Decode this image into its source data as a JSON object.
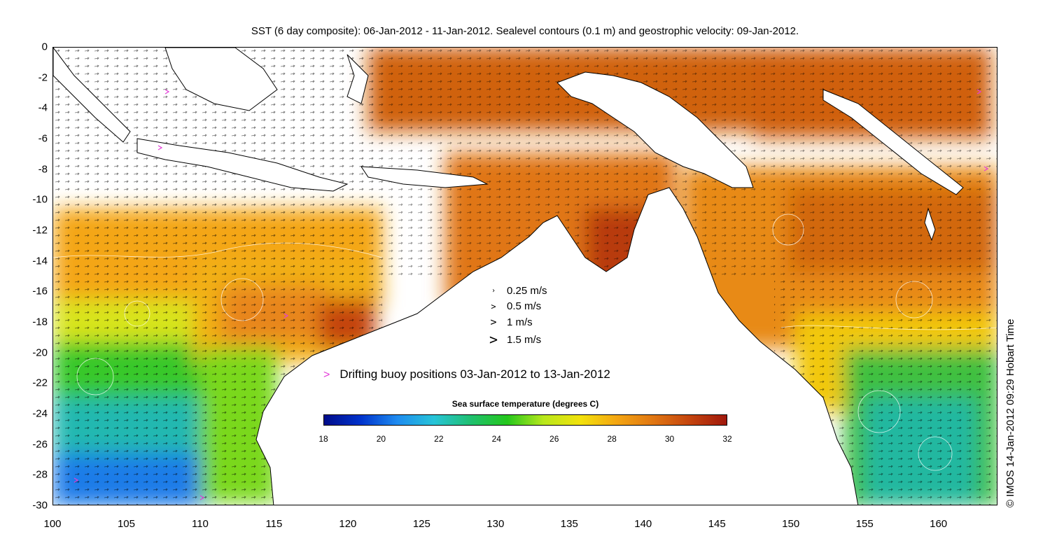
{
  "title": "SST (6 day composite): 06-Jan-2012 - 11-Jan-2012. Sealevel contours (0.1 m) and geostrophic velocity: 09-Jan-2012.",
  "credit": "© IMOS 14-Jan-2012 09:29 Hobart Time",
  "axes": {
    "x_ticks": [
      "100",
      "105",
      "110",
      "115",
      "120",
      "125",
      "130",
      "135",
      "140",
      "145",
      "150",
      "155",
      "160"
    ],
    "y_ticks": [
      "0",
      "-2",
      "-4",
      "-6",
      "-8",
      "-10",
      "-12",
      "-14",
      "-16",
      "-18",
      "-20",
      "-22",
      "-24",
      "-26",
      "-28",
      "-30"
    ],
    "x_range": [
      100,
      164
    ],
    "y_range": [
      -30,
      0
    ]
  },
  "velocity_legend": [
    {
      "label": "0.25 m/s",
      "symbol": "›"
    },
    {
      "label": "0.5 m/s",
      "symbol": ">"
    },
    {
      "label": "1 m/s",
      "symbol": ">"
    },
    {
      "label": "1.5 m/s",
      "symbol": ">"
    }
  ],
  "buoy_legend": {
    "symbol": ">",
    "label": "Drifting buoy positions 03-Jan-2012 to 13-Jan-2012",
    "color": "#e33cd8"
  },
  "colorbar": {
    "title": "Sea surface temperature (degrees C)",
    "ticks": [
      "18",
      "20",
      "22",
      "24",
      "26",
      "28",
      "30",
      "32"
    ],
    "range": [
      18,
      32
    ],
    "colors": [
      "#000c8a",
      "#0033cc",
      "#1f8cf0",
      "#27c4d8",
      "#1fc070",
      "#24c71c",
      "#b8e81c",
      "#f2e20c",
      "#f4a612",
      "#e07612",
      "#c4440e",
      "#a0180c"
    ]
  }
}
